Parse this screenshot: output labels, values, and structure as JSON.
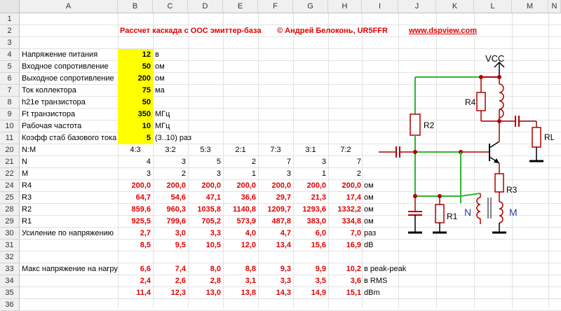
{
  "columns": [
    "A",
    "B",
    "C",
    "D",
    "E",
    "F",
    "G",
    "H",
    "I",
    "J",
    "K",
    "L",
    "M",
    "N"
  ],
  "rows": [
    "1",
    "2",
    "3",
    "4",
    "5",
    "6",
    "7",
    "8",
    "9",
    "10",
    "11",
    "20",
    "21",
    "22",
    "24",
    "25",
    "28",
    "29",
    "30",
    "31",
    "32",
    "33",
    "34",
    "35",
    "36"
  ],
  "header": {
    "title": "Рассчет каскада с ООС эмиттер-база",
    "author": "© Андрей Белоконь, UR5FFR",
    "site": "www.dspview.com"
  },
  "params": [
    {
      "label": "Напряжение питания",
      "value": "12",
      "unit": "в"
    },
    {
      "label": "Входное сопротивление",
      "value": "50",
      "unit": "ом"
    },
    {
      "label": "Выходное сопротивление",
      "value": "200",
      "unit": "ом"
    },
    {
      "label": "Ток коллектора",
      "value": "75",
      "unit": "ма"
    },
    {
      "label": "h21e транзистора",
      "value": "50",
      "unit": ""
    },
    {
      "label": "Ft транзистора",
      "value": "350",
      "unit": "МГц"
    },
    {
      "label": "Рабочая частота",
      "value": "10",
      "unit": "МГц"
    },
    {
      "label": "Коэфф стаб базового тока",
      "value": "5",
      "unit": "(3..10) раз"
    }
  ],
  "table": [
    {
      "label": "N:M",
      "values": [
        "4:3",
        "3:2",
        "5:3",
        "2:1",
        "7:3",
        "3:1",
        "7:2"
      ],
      "unit": "",
      "style": "ratio"
    },
    {
      "label": "N",
      "values": [
        "4",
        "3",
        "5",
        "2",
        "7",
        "3",
        "7"
      ],
      "unit": "",
      "style": "plain"
    },
    {
      "label": "M",
      "values": [
        "3",
        "2",
        "3",
        "1",
        "3",
        "1",
        "2"
      ],
      "unit": "",
      "style": "plain"
    },
    {
      "label": "R4",
      "values": [
        "200,0",
        "200,0",
        "200,0",
        "200,0",
        "200,0",
        "200,0",
        "200,0"
      ],
      "unit": "ом",
      "style": "red"
    },
    {
      "label": "R3",
      "values": [
        "64,7",
        "54,6",
        "47,1",
        "36,6",
        "29,7",
        "21,3",
        "17,4"
      ],
      "unit": "ом",
      "style": "red"
    },
    {
      "label": "R2",
      "values": [
        "859,6",
        "960,3",
        "1035,8",
        "1140,8",
        "1209,7",
        "1293,6",
        "1332,2"
      ],
      "unit": "ом",
      "style": "red"
    },
    {
      "label": "R1",
      "values": [
        "925,5",
        "799,6",
        "705,2",
        "573,9",
        "487,8",
        "383,0",
        "334,8"
      ],
      "unit": "ом",
      "style": "red"
    },
    {
      "label": "Усиление по напряжению",
      "values": [
        "2,7",
        "3,0",
        "3,3",
        "4,0",
        "4,7",
        "6,0",
        "7,0"
      ],
      "unit": "раз",
      "style": "red"
    },
    {
      "label": "",
      "values": [
        "8,5",
        "9,5",
        "10,5",
        "12,0",
        "13,4",
        "15,6",
        "16,9"
      ],
      "unit": "dB",
      "style": "red"
    },
    {
      "label": "",
      "values": [
        "",
        "",
        "",
        "",
        "",
        "",
        ""
      ],
      "unit": "",
      "style": "plain"
    },
    {
      "label": "Макс напряжение на нагру",
      "values": [
        "6,6",
        "7,4",
        "8,0",
        "8,8",
        "9,3",
        "9,9",
        "10,2"
      ],
      "unit": "в peak-peak",
      "style": "red"
    },
    {
      "label": "",
      "values": [
        "2,4",
        "2,6",
        "2,8",
        "3,1",
        "3,3",
        "3,5",
        "3,6"
      ],
      "unit": "в RMS",
      "style": "red"
    },
    {
      "label": "",
      "values": [
        "11,4",
        "12,3",
        "13,0",
        "13,8",
        "14,3",
        "14,9",
        "15,1"
      ],
      "unit": "dBm",
      "style": "red"
    }
  ],
  "schematic": {
    "vcc": "VCC",
    "r1": "R1",
    "r2": "R2",
    "r3": "R3",
    "r4": "R4",
    "rl": "RL",
    "n": "N",
    "m": "M"
  },
  "colors": {
    "highlight": "#ffff00",
    "red": "#e00000",
    "wire_green": "#2fb52f",
    "component": "#b00000",
    "node": "#b00000"
  }
}
